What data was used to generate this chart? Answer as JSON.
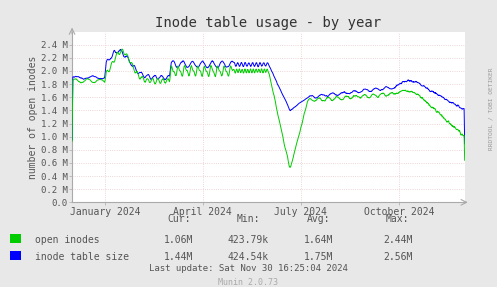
{
  "title": "Inode table usage - by year",
  "ylabel": "number of open inodes",
  "bg_color": "#e8e8e8",
  "plot_bg_color": "#ffffff",
  "ylim": [
    0.0,
    2600000
  ],
  "yticks": [
    0,
    200000,
    400000,
    600000,
    800000,
    1000000,
    1200000,
    1400000,
    1600000,
    1800000,
    2000000,
    2200000,
    2400000
  ],
  "ytick_labels": [
    "0.0",
    "0.2 M",
    "0.4 M",
    "0.6 M",
    "0.8 M",
    "1.0 M",
    "1.2 M",
    "1.4 M",
    "1.6 M",
    "1.8 M",
    "2.0 M",
    "2.2 M",
    "2.4 M"
  ],
  "xtick_labels": [
    "January 2024",
    "April 2024",
    "July 2024",
    "October 2024"
  ],
  "xtick_positions": [
    0.085,
    0.333,
    0.582,
    0.833
  ],
  "grid_vlines": [
    0.085,
    0.333,
    0.582,
    0.833
  ],
  "open_inodes_color": "#00cc00",
  "inode_table_color": "#0000ff",
  "grid_color": "#e8c8c8",
  "axis_color": "#aaaaaa",
  "text_color": "#555555",
  "stats_headers": [
    "Cur:",
    "Min:",
    "Avg:",
    "Max:"
  ],
  "stats_rows": [
    {
      "label": "open inodes",
      "color": "#00cc00",
      "values": [
        "1.06M",
        "423.79k",
        "1.64M",
        "2.44M"
      ]
    },
    {
      "label": "inode table size",
      "color": "#0000ff",
      "values": [
        "1.44M",
        "424.54k",
        "1.75M",
        "2.56M"
      ]
    }
  ],
  "footer": "Last update: Sat Nov 30 16:25:04 2024",
  "munin_version": "Munin 2.0.73",
  "rrdtool_label": "RRDTOOL / TOBI OETIKER"
}
